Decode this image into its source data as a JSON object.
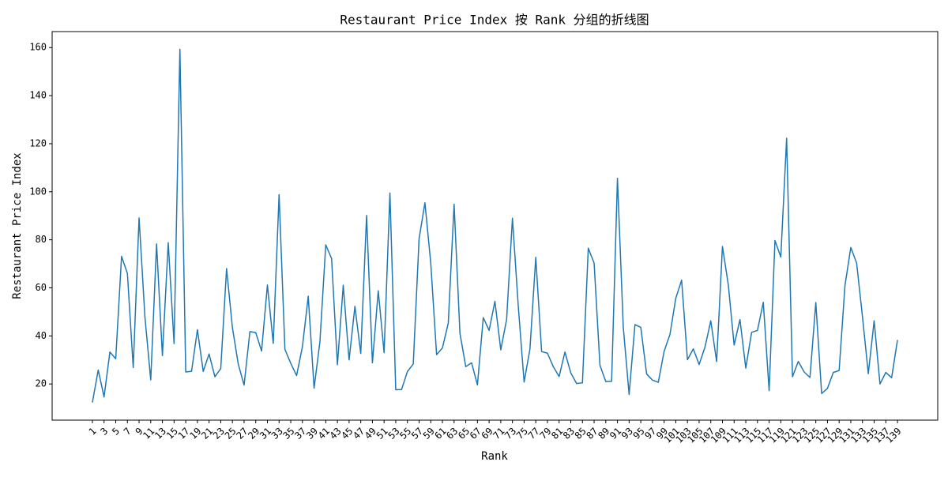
{
  "chart_data": {
    "type": "line",
    "title": "Restaurant Price Index 按 Rank 分组的折线图",
    "x_label": "Rank",
    "y_label": "Restaurant Price Index",
    "x": [
      1,
      2,
      3,
      4,
      5,
      6,
      7,
      8,
      9,
      10,
      11,
      12,
      13,
      14,
      15,
      16,
      17,
      18,
      19,
      20,
      21,
      22,
      23,
      24,
      25,
      26,
      27,
      28,
      29,
      30,
      31,
      32,
      33,
      34,
      35,
      36,
      37,
      38,
      39,
      40,
      41,
      42,
      43,
      44,
      45,
      46,
      47,
      48,
      49,
      50,
      51,
      52,
      53,
      54,
      55,
      56,
      57,
      58,
      59,
      60,
      61,
      62,
      63,
      64,
      65,
      66,
      67,
      68,
      69,
      70,
      71,
      72,
      73,
      74,
      75,
      76,
      77,
      78,
      79,
      80,
      81,
      82,
      83,
      84,
      85,
      86,
      87,
      88,
      89,
      90,
      91,
      92,
      93,
      94,
      95,
      96,
      97,
      98,
      99,
      100,
      101,
      102,
      103,
      104,
      105,
      106,
      107,
      108,
      109,
      110,
      111,
      112,
      113,
      114,
      115,
      116,
      117,
      118,
      119,
      120,
      121,
      122,
      123,
      124,
      125,
      126,
      127,
      128,
      129,
      130,
      131,
      132,
      133,
      134,
      135,
      136,
      137,
      138,
      139
    ],
    "series": [
      {
        "name": "Restaurant Price Index",
        "color": "#1f77b4",
        "values": [
          12.3,
          25.8,
          14.6,
          33.3,
          30.5,
          73.1,
          66.0,
          26.8,
          89.1,
          48,
          21.7,
          78.3,
          31.8,
          78.8,
          36.8,
          159.3,
          25.0,
          25.3,
          42.6,
          25.2,
          32.5,
          23.0,
          26.4,
          68.0,
          43.5,
          28.3,
          19.5,
          41.8,
          41.4,
          33.7,
          61.2,
          36.9,
          98.8,
          34.4,
          28.6,
          23.5,
          35.5,
          56.5,
          18.2,
          37.6,
          77.9,
          72.2,
          28.0,
          61.1,
          30.0,
          52.3,
          32.7,
          90.1,
          28.8,
          58.8,
          33.0,
          99.5,
          17.6,
          17.7,
          25.2,
          28.3,
          80.5,
          95.4,
          70.3,
          32.2,
          35.0,
          45.3,
          94.8,
          41.1,
          27.2,
          28.8,
          19.6,
          47.6,
          42.3,
          54.4,
          34.2,
          46.8,
          89.0,
          52.4,
          20.8,
          34.5,
          72.7,
          33.5,
          32.8,
          27.2,
          23.1,
          33.3,
          24.6,
          20.2,
          20.5,
          76.5,
          70.3,
          27.8,
          21.0,
          21.1,
          105.6,
          43.6,
          15.6,
          44.7,
          43.6,
          24.2,
          21.6,
          20.7,
          33.6,
          40.6,
          55.7,
          63.2,
          30.1,
          34.6,
          28.1,
          35.3,
          46.3,
          29.3,
          77.2,
          61.3,
          36.2,
          46.8,
          26.6,
          41.5,
          42.3,
          54.0,
          17.2,
          79.7,
          72.8,
          122.3,
          23.0,
          29.4,
          25.0,
          22.7,
          53.9,
          16.0,
          18.2,
          24.8,
          25.6,
          61.0,
          76.8,
          70.3,
          48.0,
          24.3,
          46.3,
          20.0,
          24.8,
          22.6,
          38.3
        ]
      }
    ],
    "xlim": [
      -5.9,
      145.9
    ],
    "xticks": [
      1,
      3,
      5,
      7,
      9,
      11,
      13,
      15,
      17,
      19,
      21,
      23,
      25,
      27,
      29,
      31,
      33,
      35,
      37,
      39,
      41,
      43,
      45,
      47,
      49,
      51,
      53,
      55,
      57,
      59,
      61,
      63,
      65,
      67,
      69,
      71,
      73,
      75,
      77,
      79,
      81,
      83,
      85,
      87,
      89,
      91,
      93,
      95,
      97,
      99,
      101,
      103,
      105,
      107,
      109,
      111,
      113,
      115,
      117,
      119,
      121,
      123,
      125,
      127,
      129,
      131,
      133,
      135,
      137,
      139
    ],
    "ylim": [
      4.95,
      166.65
    ],
    "yticks": [
      20,
      40,
      60,
      80,
      100,
      120,
      140,
      160
    ],
    "grid": false
  }
}
